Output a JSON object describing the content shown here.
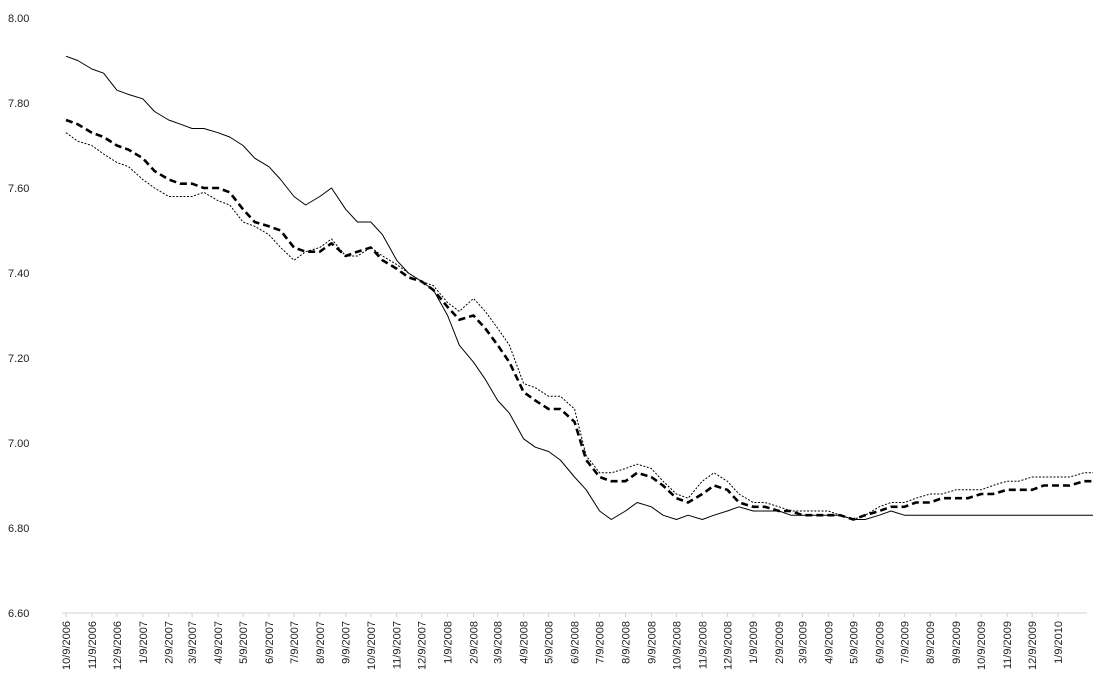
{
  "chart_data": {
    "type": "line",
    "title": "",
    "xlabel": "",
    "ylabel": "",
    "ylim": [
      6.6,
      8.0
    ],
    "yticks": [
      "8.00",
      "7.80",
      "7.60",
      "7.40",
      "7.20",
      "7.00",
      "6.80",
      "6.60"
    ],
    "grid": false,
    "legend": "none",
    "x_tick_labels": [
      "10/9/2006",
      "11/9/2006",
      "12/9/2006",
      "1/9/2007",
      "2/9/2007",
      "3/9/2007",
      "4/9/2007",
      "5/9/2007",
      "6/9/2007",
      "7/9/2007",
      "8/9/2007",
      "9/9/2007",
      "10/9/2007",
      "11/9/2007",
      "12/9/2007",
      "1/9/2008",
      "2/9/2008",
      "3/9/2008",
      "4/9/2008",
      "5/9/2008",
      "6/9/2008",
      "7/9/2008",
      "8/9/2008",
      "9/9/2008",
      "10/9/2008",
      "11/9/2008",
      "12/9/2008",
      "1/9/2009",
      "2/9/2009",
      "3/9/2009",
      "4/9/2009",
      "5/9/2009",
      "6/9/2009",
      "7/9/2009",
      "8/9/2009",
      "9/9/2009",
      "10/9/2009",
      "11/9/2009",
      "12/9/2009",
      "1/9/2010"
    ],
    "series": [
      {
        "style": "solid",
        "color": "#000000",
        "x": [
          "10/9/2006",
          "10/23/2006",
          "11/9/2006",
          "11/23/2006",
          "12/9/2006",
          "12/23/2006",
          "1/9/2007",
          "1/23/2007",
          "2/9/2007",
          "2/23/2007",
          "3/9/2007",
          "3/23/2007",
          "4/9/2007",
          "4/23/2007",
          "5/9/2007",
          "5/23/2007",
          "6/9/2007",
          "6/23/2007",
          "7/9/2007",
          "7/23/2007",
          "8/9/2007",
          "8/23/2007",
          "9/9/2007",
          "9/23/2007",
          "10/9/2007",
          "10/23/2007",
          "11/9/2007",
          "11/23/2007",
          "12/9/2007",
          "12/23/2007",
          "1/9/2008",
          "1/23/2008",
          "2/9/2008",
          "2/23/2008",
          "3/9/2008",
          "3/23/2008",
          "4/9/2008",
          "4/23/2008",
          "5/9/2008",
          "5/23/2008",
          "6/9/2008",
          "6/23/2008",
          "7/9/2008",
          "7/23/2008",
          "8/9/2008",
          "8/23/2008",
          "9/9/2008",
          "9/23/2008",
          "10/9/2008",
          "10/23/2008",
          "11/9/2008",
          "11/23/2008",
          "12/9/2008",
          "12/23/2008",
          "1/9/2009",
          "1/23/2009",
          "2/9/2009",
          "2/23/2009",
          "3/9/2009",
          "3/23/2009",
          "4/9/2009",
          "4/23/2009",
          "5/9/2009",
          "5/23/2009",
          "6/9/2009",
          "6/23/2009",
          "7/9/2009",
          "7/23/2009",
          "8/9/2009",
          "8/23/2009",
          "9/9/2009",
          "9/23/2009",
          "10/9/2009",
          "10/23/2009",
          "11/9/2009",
          "11/23/2009",
          "12/9/2009",
          "12/23/2009",
          "1/9/2010",
          "1/23/2010",
          "2/9/2010",
          "2/23/2010"
        ],
        "y": [
          7.91,
          7.9,
          7.88,
          7.87,
          7.83,
          7.82,
          7.81,
          7.78,
          7.76,
          7.75,
          7.74,
          7.74,
          7.73,
          7.72,
          7.7,
          7.67,
          7.65,
          7.62,
          7.58,
          7.56,
          7.58,
          7.6,
          7.55,
          7.52,
          7.52,
          7.49,
          7.43,
          7.4,
          7.38,
          7.36,
          7.3,
          7.23,
          7.19,
          7.15,
          7.1,
          7.07,
          7.01,
          6.99,
          6.98,
          6.96,
          6.92,
          6.89,
          6.84,
          6.82,
          6.84,
          6.86,
          6.85,
          6.83,
          6.82,
          6.83,
          6.82,
          6.83,
          6.84,
          6.85,
          6.84,
          6.84,
          6.84,
          6.83,
          6.83,
          6.83,
          6.83,
          6.83,
          6.82,
          6.82,
          6.83,
          6.84,
          6.83,
          6.83,
          6.83,
          6.83,
          6.83,
          6.83,
          6.83,
          6.83,
          6.83,
          6.83,
          6.83,
          6.83,
          6.83,
          6.83,
          6.83,
          6.83
        ]
      },
      {
        "style": "dashed",
        "color": "#000000",
        "x": [
          "10/9/2006",
          "10/23/2006",
          "11/9/2006",
          "11/23/2006",
          "12/9/2006",
          "12/23/2006",
          "1/9/2007",
          "1/23/2007",
          "2/9/2007",
          "2/23/2007",
          "3/9/2007",
          "3/23/2007",
          "4/9/2007",
          "4/23/2007",
          "5/9/2007",
          "5/23/2007",
          "6/9/2007",
          "6/23/2007",
          "7/9/2007",
          "7/23/2007",
          "8/9/2007",
          "8/23/2007",
          "9/9/2007",
          "9/23/2007",
          "10/9/2007",
          "10/23/2007",
          "11/9/2007",
          "11/23/2007",
          "12/9/2007",
          "12/23/2007",
          "1/9/2008",
          "1/23/2008",
          "2/9/2008",
          "2/23/2008",
          "3/9/2008",
          "3/23/2008",
          "4/9/2008",
          "4/23/2008",
          "5/9/2008",
          "5/23/2008",
          "6/9/2008",
          "6/23/2008",
          "7/9/2008",
          "7/23/2008",
          "8/9/2008",
          "8/23/2008",
          "9/9/2008",
          "9/23/2008",
          "10/9/2008",
          "10/23/2008",
          "11/9/2008",
          "11/23/2008",
          "12/9/2008",
          "12/23/2008",
          "1/9/2009",
          "1/23/2009",
          "2/9/2009",
          "2/23/2009",
          "3/9/2009",
          "3/23/2009",
          "4/9/2009",
          "4/23/2009",
          "5/9/2009",
          "5/23/2009",
          "6/9/2009",
          "6/23/2009",
          "7/9/2009",
          "7/23/2009",
          "8/9/2009",
          "8/23/2009",
          "9/9/2009",
          "9/23/2009",
          "10/9/2009",
          "10/23/2009",
          "11/9/2009",
          "11/23/2009",
          "12/9/2009",
          "12/23/2009",
          "1/9/2010",
          "1/23/2010",
          "2/9/2010",
          "2/23/2010"
        ],
        "y": [
          7.76,
          7.75,
          7.73,
          7.72,
          7.7,
          7.69,
          7.67,
          7.64,
          7.62,
          7.61,
          7.61,
          7.6,
          7.6,
          7.59,
          7.55,
          7.52,
          7.51,
          7.5,
          7.46,
          7.45,
          7.45,
          7.47,
          7.44,
          7.45,
          7.46,
          7.43,
          7.41,
          7.39,
          7.38,
          7.36,
          7.32,
          7.29,
          7.3,
          7.27,
          7.23,
          7.19,
          7.12,
          7.1,
          7.08,
          7.08,
          7.05,
          6.96,
          6.92,
          6.91,
          6.91,
          6.93,
          6.92,
          6.9,
          6.87,
          6.86,
          6.88,
          6.9,
          6.89,
          6.86,
          6.85,
          6.85,
          6.84,
          6.84,
          6.83,
          6.83,
          6.83,
          6.83,
          6.82,
          6.83,
          6.84,
          6.85,
          6.85,
          6.86,
          6.86,
          6.87,
          6.87,
          6.87,
          6.88,
          6.88,
          6.89,
          6.89,
          6.89,
          6.9,
          6.9,
          6.9,
          6.91,
          6.91
        ]
      },
      {
        "style": "dotted",
        "color": "#000000",
        "x": [
          "10/9/2006",
          "10/23/2006",
          "11/9/2006",
          "11/23/2006",
          "12/9/2006",
          "12/23/2006",
          "1/9/2007",
          "1/23/2007",
          "2/9/2007",
          "2/23/2007",
          "3/9/2007",
          "3/23/2007",
          "4/9/2007",
          "4/23/2007",
          "5/9/2007",
          "5/23/2007",
          "6/9/2007",
          "6/23/2007",
          "7/9/2007",
          "7/23/2007",
          "8/9/2007",
          "8/23/2007",
          "9/9/2007",
          "9/23/2007",
          "10/9/2007",
          "10/23/2007",
          "11/9/2007",
          "11/23/2007",
          "12/9/2007",
          "12/23/2007",
          "1/9/2008",
          "1/23/2008",
          "2/9/2008",
          "2/23/2008",
          "3/9/2008",
          "3/23/2008",
          "4/9/2008",
          "4/23/2008",
          "5/9/2008",
          "5/23/2008",
          "6/9/2008",
          "6/23/2008",
          "7/9/2008",
          "7/23/2008",
          "8/9/2008",
          "8/23/2008",
          "9/9/2008",
          "9/23/2008",
          "10/9/2008",
          "10/23/2008",
          "11/9/2008",
          "11/23/2008",
          "12/9/2008",
          "12/23/2008",
          "1/9/2009",
          "1/23/2009",
          "2/9/2009",
          "2/23/2009",
          "3/9/2009",
          "3/23/2009",
          "4/9/2009",
          "4/23/2009",
          "5/9/2009",
          "5/23/2009",
          "6/9/2009",
          "6/23/2009",
          "7/9/2009",
          "7/23/2009",
          "8/9/2009",
          "8/23/2009",
          "9/9/2009",
          "9/23/2009",
          "10/9/2009",
          "10/23/2009",
          "11/9/2009",
          "11/23/2009",
          "12/9/2009",
          "12/23/2009",
          "1/9/2010",
          "1/23/2010",
          "2/9/2010",
          "2/23/2010"
        ],
        "y": [
          7.73,
          7.71,
          7.7,
          7.68,
          7.66,
          7.65,
          7.62,
          7.6,
          7.58,
          7.58,
          7.58,
          7.59,
          7.57,
          7.56,
          7.52,
          7.51,
          7.49,
          7.46,
          7.43,
          7.45,
          7.46,
          7.48,
          7.44,
          7.44,
          7.46,
          7.44,
          7.42,
          7.4,
          7.38,
          7.37,
          7.33,
          7.31,
          7.34,
          7.31,
          7.27,
          7.23,
          7.14,
          7.13,
          7.11,
          7.11,
          7.08,
          6.97,
          6.93,
          6.93,
          6.94,
          6.95,
          6.94,
          6.91,
          6.88,
          6.87,
          6.91,
          6.93,
          6.91,
          6.88,
          6.86,
          6.86,
          6.85,
          6.84,
          6.84,
          6.84,
          6.84,
          6.83,
          6.82,
          6.83,
          6.85,
          6.86,
          6.86,
          6.87,
          6.88,
          6.88,
          6.89,
          6.89,
          6.89,
          6.9,
          6.91,
          6.91,
          6.92,
          6.92,
          6.92,
          6.92,
          6.93,
          6.93
        ]
      }
    ]
  }
}
